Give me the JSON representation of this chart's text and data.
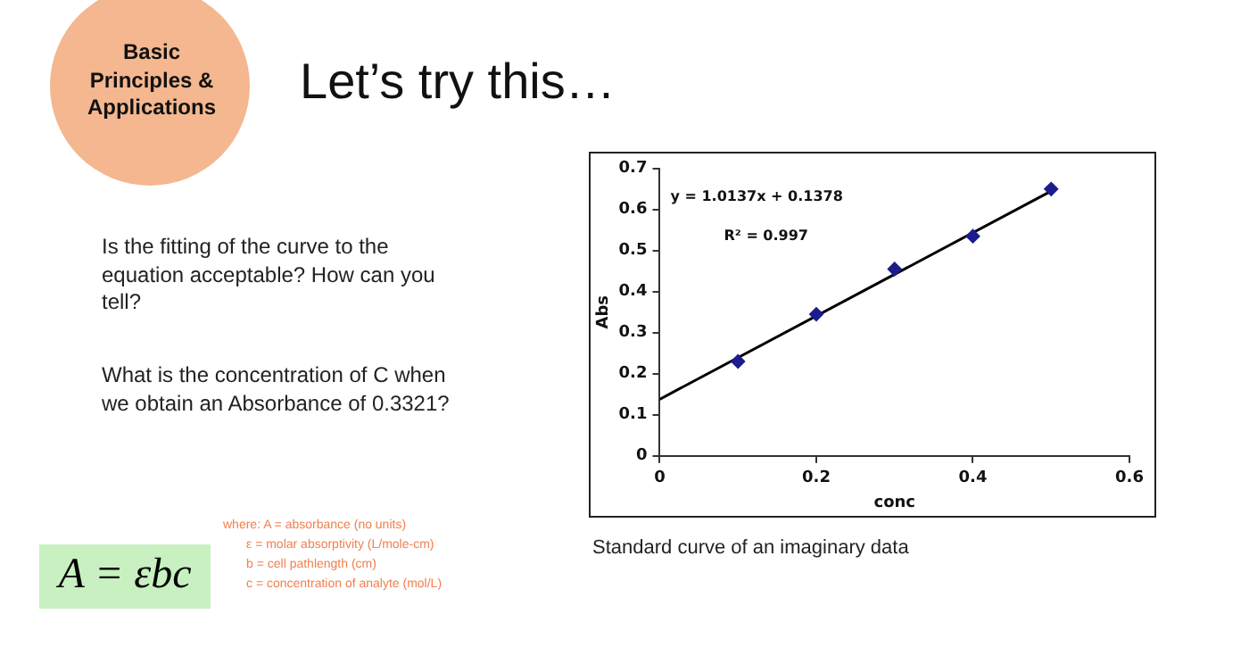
{
  "chart_data": {
    "type": "scatter",
    "title": "Let’s try this…",
    "xlabel": "conc",
    "ylabel": "Abs",
    "xlim": [
      0,
      0.6
    ],
    "xticks": [
      0,
      0.2,
      0.4,
      0.6
    ],
    "ylim": [
      0,
      0.7
    ],
    "yticks": [
      0,
      0.1,
      0.2,
      0.3,
      0.4,
      0.5,
      0.6,
      0.7
    ],
    "grid": false,
    "legend": false,
    "series": [
      {
        "marker": "diamond",
        "color": "#1c1c8c",
        "x": [
          0.1,
          0.2,
          0.3,
          0.4,
          0.5
        ],
        "values": [
          0.23,
          0.345,
          0.455,
          0.535,
          0.65
        ]
      },
      {
        "type": "line",
        "marker": "none",
        "color": "#000000",
        "x": [
          0,
          0.5
        ],
        "values": [
          0.138,
          0.645
        ]
      }
    ],
    "annotations": [
      "y = 1.0137x + 0.1378",
      "R² = 0.997",
      "Standard curve of an imaginary data",
      "Basic Principles & Applications",
      "Is the fitting of the curve to the equation acceptable? How can you tell?",
      "What is the concentration of C when we obtain an Absorbance of 0.3321?",
      "A = εbc",
      "where: A = absorbance (no units)",
      "ε = molar absorptivity (L/mole-cm)",
      "b = cell pathlength (cm)",
      "c = concentration of analyte (mol/L)"
    ]
  }
}
